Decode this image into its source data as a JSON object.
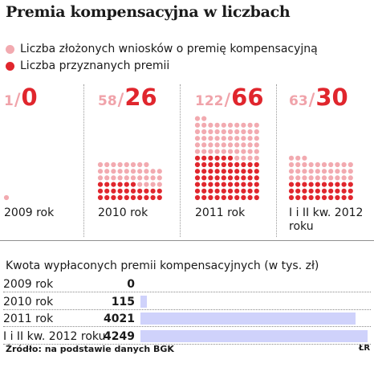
{
  "title": "Premia kompensacyjna w liczbach",
  "legend": [
    {
      "label": "Liczba złożonych wniosków o premię kompensacyjną",
      "color": "#f2aab0"
    },
    {
      "label": "Liczba przyznanych premii",
      "color": "#e0262d"
    }
  ],
  "subtitle": "Kwota wypłaconych premii kompensacyjnych (w tys. zł)",
  "source": "Źródło: na podstawie danych BGK",
  "credit": "ŁR",
  "chart_data": [
    {
      "type": "bar",
      "title": "Premia kompensacyjna w liczbach",
      "categories": [
        "2009 rok",
        "2010 rok",
        "2011 rok",
        "I i II kw. 2012 roku"
      ],
      "series": [
        {
          "name": "Liczba złożonych wniosków o premię kompensacyjną",
          "values": [
            1,
            58,
            122,
            63
          ],
          "color": "#f2aab0"
        },
        {
          "name": "Liczba przyznanych premii",
          "values": [
            0,
            26,
            66,
            30
          ],
          "color": "#e0262d"
        }
      ]
    },
    {
      "type": "bar",
      "title": "Kwota wypłaconych premii kompensacyjnych (w tys. zł)",
      "categories": [
        "2009 rok",
        "2010 rok",
        "2011 rok",
        "I i II kw. 2012 roku"
      ],
      "values": [
        0,
        115,
        4021,
        4249
      ],
      "color": "#cfd2fb"
    }
  ]
}
